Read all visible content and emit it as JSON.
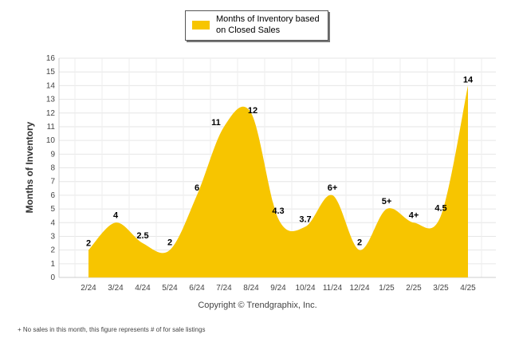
{
  "legend": {
    "label": "Months of Inventory based on Closed Sales",
    "color": "#F7C500"
  },
  "copyright": "Copyright © Trendgraphix, Inc.",
  "footnote": "+ No sales in this month, this figure represents # of for sale listings",
  "chart_data": {
    "type": "area",
    "ylabel": "Months of Inventory",
    "xlabel": "",
    "ylim": [
      0,
      16
    ],
    "yticks": [
      0,
      1,
      2,
      3,
      4,
      5,
      6,
      7,
      8,
      9,
      10,
      11,
      12,
      13,
      14,
      15,
      16
    ],
    "grid": true,
    "legend_position": "top-center",
    "categories": [
      "2/24",
      "3/24",
      "4/24",
      "5/24",
      "6/24",
      "7/24",
      "8/24",
      "9/24",
      "10/24",
      "11/24",
      "12/24",
      "1/25",
      "2/25",
      "3/25",
      "4/25"
    ],
    "series": [
      {
        "name": "Months of Inventory based on Closed Sales",
        "values": [
          2,
          4,
          2.5,
          2,
          6,
          11,
          12,
          4.3,
          3.7,
          6,
          2,
          5,
          4,
          4.5,
          14
        ],
        "labels": [
          "2",
          "4",
          "2.5",
          "2",
          "6",
          "11",
          "12",
          "4.3",
          "3.7",
          "6+",
          "2",
          "5+",
          "4+",
          "4.5",
          "14"
        ]
      }
    ]
  }
}
